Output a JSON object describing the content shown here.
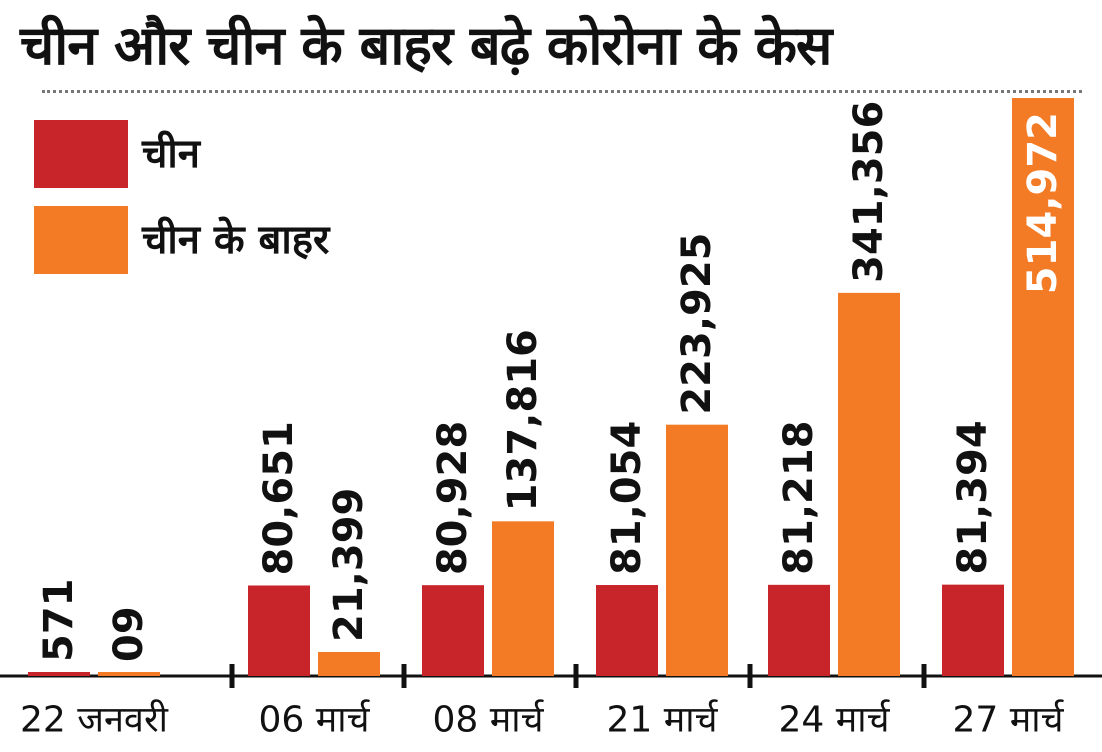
{
  "chart_data": {
    "type": "bar",
    "title": "चीन और चीन के बाहर बढ़े कोरोना के केस",
    "categories": [
      "22 जनवरी",
      "06 मार्च",
      "08 मार्च",
      "21 मार्च",
      "24 मार्च",
      "27 मार्च"
    ],
    "series": [
      {
        "name": "चीन",
        "color": "#c8252b",
        "values": [
          571,
          80651,
          80928,
          81054,
          81218,
          81394
        ],
        "labels": [
          "571",
          "80,651",
          "80,928",
          "81,054",
          "81,218",
          "81,394"
        ]
      },
      {
        "name": "चीन के बाहर",
        "color": "#f47b26",
        "values": [
          9,
          21399,
          137816,
          223925,
          341356,
          514972
        ],
        "labels": [
          "09",
          "21,399",
          "137,816",
          "223,925",
          "341,356",
          "514,972"
        ]
      }
    ],
    "ylim": [
      0,
      514972
    ],
    "xlabel": "",
    "ylabel": "",
    "grid": false,
    "legend": "top-left"
  }
}
